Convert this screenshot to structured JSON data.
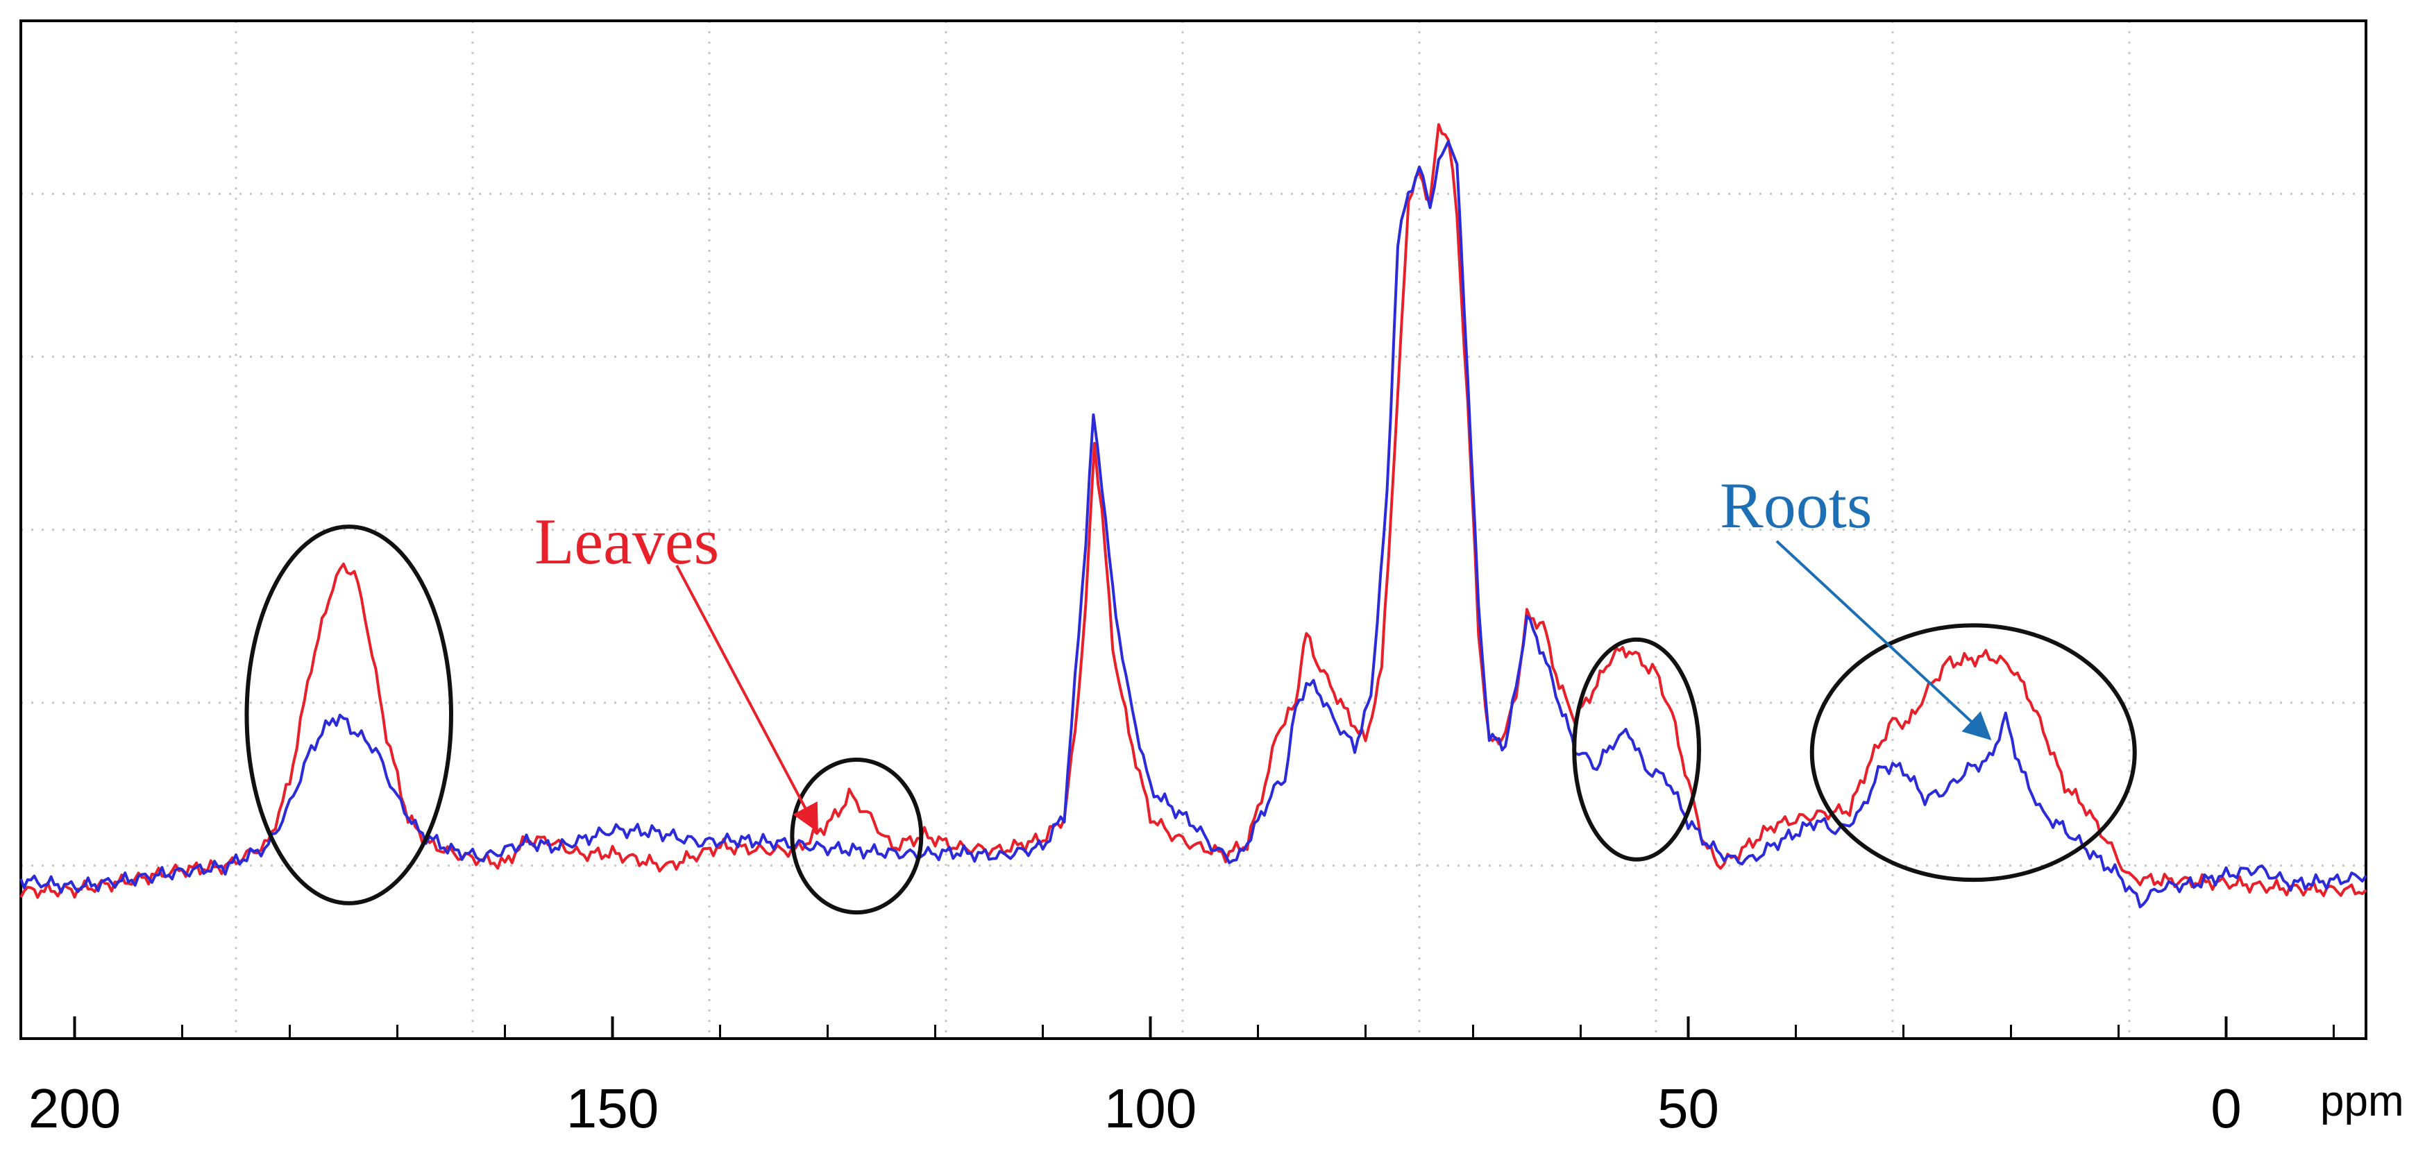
{
  "chart_data": {
    "type": "line",
    "title": "",
    "xlabel": "ppm",
    "ylabel": "",
    "x_reversed": true,
    "xlim": [
      205,
      -13
    ],
    "ylim": [
      0,
      100
    ],
    "grid": true,
    "x_major_ticks": [
      200,
      150,
      100,
      50,
      0
    ],
    "x_tick_labels": [
      "200",
      "150",
      "100",
      "50",
      "0"
    ],
    "x_minor_ticks": [
      190,
      180,
      170,
      160,
      140,
      130,
      120,
      110,
      90,
      80,
      70,
      60,
      40,
      30,
      20,
      10,
      -10
    ],
    "x_grid_lines": [
      185,
      163,
      141,
      119,
      97,
      75,
      53,
      31,
      9
    ],
    "y_grid_lines": [
      17,
      33,
      50,
      67,
      83
    ],
    "series": [
      {
        "name": "Leaves",
        "color": "#e8202a",
        "points": [
          [
            205,
            14.5
          ],
          [
            200,
            14.6
          ],
          [
            195,
            15.5
          ],
          [
            190,
            16.6
          ],
          [
            186,
            16.9
          ],
          [
            182,
            19.2
          ],
          [
            180,
            25.3
          ],
          [
            178,
            36.7
          ],
          [
            176,
            44.6
          ],
          [
            175,
            46.4
          ],
          [
            174,
            45.8
          ],
          [
            173,
            41.6
          ],
          [
            171,
            29.8
          ],
          [
            169,
            21.6
          ],
          [
            167,
            19.1
          ],
          [
            164,
            17.9
          ],
          [
            160,
            17.2
          ],
          [
            158,
            19.5
          ],
          [
            156,
            19.5
          ],
          [
            153,
            18.1
          ],
          [
            150,
            18.2
          ],
          [
            145,
            16.9
          ],
          [
            140,
            18.9
          ],
          [
            136,
            18.5
          ],
          [
            133,
            18.5
          ],
          [
            131,
            20.1
          ],
          [
            129,
            22.2
          ],
          [
            128,
            24.0
          ],
          [
            126,
            21.7
          ],
          [
            124,
            18.8
          ],
          [
            121,
            20.0
          ],
          [
            118,
            18.8
          ],
          [
            114,
            18.5
          ],
          [
            110,
            19.6
          ],
          [
            108,
            21.7
          ],
          [
            107,
            30.2
          ],
          [
            106,
            42.6
          ],
          [
            105.2,
            58.4
          ],
          [
            104.5,
            51.8
          ],
          [
            103.5,
            38.5
          ],
          [
            102,
            30.1
          ],
          [
            100,
            21.8
          ],
          [
            98,
            20.0
          ],
          [
            96,
            19.0
          ],
          [
            93,
            18.1
          ],
          [
            91,
            19.1
          ],
          [
            89,
            26.2
          ],
          [
            88.3,
            29.9
          ],
          [
            87.5,
            31.3
          ],
          [
            86.5,
            32.8
          ],
          [
            86,
            37.1
          ],
          [
            85.5,
            39.7
          ],
          [
            84.5,
            37.0
          ],
          [
            82,
            32.4
          ],
          [
            80,
            29.2
          ],
          [
            78.5,
            36.3
          ],
          [
            77,
            63.0
          ],
          [
            76,
            82.6
          ],
          [
            75,
            84.9
          ],
          [
            74,
            82.3
          ],
          [
            73.2,
            89.5
          ],
          [
            72.3,
            88.8
          ],
          [
            71.5,
            80.6
          ],
          [
            70.5,
            62.4
          ],
          [
            69.5,
            40.1
          ],
          [
            68.5,
            29.0
          ],
          [
            67,
            29.9
          ],
          [
            66,
            34.0
          ],
          [
            65,
            41.5
          ],
          [
            63.5,
            40.7
          ],
          [
            62,
            34.7
          ],
          [
            60.5,
            31.4
          ],
          [
            58.5,
            34.8
          ],
          [
            57,
            37.8
          ],
          [
            55.5,
            38.2
          ],
          [
            54,
            36.7
          ],
          [
            53,
            36.0
          ],
          [
            51.5,
            31.8
          ],
          [
            50,
            25.1
          ],
          [
            48.5,
            19.1
          ],
          [
            47,
            17.0
          ],
          [
            45,
            18.5
          ],
          [
            42,
            21.0
          ],
          [
            38,
            22.0
          ],
          [
            35,
            22.5
          ],
          [
            33,
            27.5
          ],
          [
            31,
            31.2
          ],
          [
            29.5,
            31.0
          ],
          [
            28,
            33.8
          ],
          [
            26,
            36.9
          ],
          [
            24,
            37.2
          ],
          [
            22,
            37.6
          ],
          [
            20,
            36.6
          ],
          [
            18.5,
            34.0
          ],
          [
            17,
            30.3
          ],
          [
            15,
            24.9
          ],
          [
            13,
            22.6
          ],
          [
            11,
            19.3
          ],
          [
            9,
            15.8
          ],
          [
            7,
            15.6
          ],
          [
            0,
            15.3
          ],
          [
            -5,
            14.8
          ],
          [
            -10,
            14.6
          ],
          [
            -13,
            14.6
          ]
        ]
      },
      {
        "name": "Roots",
        "color": "#2b2bd9",
        "points": [
          [
            205,
            15.6
          ],
          [
            200,
            14.9
          ],
          [
            195,
            15.6
          ],
          [
            190,
            16.4
          ],
          [
            186,
            16.9
          ],
          [
            182,
            18.9
          ],
          [
            180,
            23.0
          ],
          [
            178,
            28.5
          ],
          [
            176,
            31.5
          ],
          [
            175,
            31.3
          ],
          [
            174,
            30.2
          ],
          [
            172,
            28.4
          ],
          [
            170,
            23.6
          ],
          [
            168,
            20.3
          ],
          [
            165,
            18.5
          ],
          [
            162,
            17.8
          ],
          [
            158,
            19.3
          ],
          [
            155,
            18.8
          ],
          [
            150,
            20.5
          ],
          [
            146,
            20.3
          ],
          [
            142,
            19.3
          ],
          [
            138,
            19.5
          ],
          [
            134,
            19.2
          ],
          [
            130,
            18.7
          ],
          [
            126,
            18.4
          ],
          [
            122,
            18.1
          ],
          [
            118,
            18.3
          ],
          [
            114,
            17.9
          ],
          [
            110,
            18.9
          ],
          [
            108,
            22.0
          ],
          [
            107,
            35.1
          ],
          [
            106,
            49.1
          ],
          [
            105.3,
            61.1
          ],
          [
            104.5,
            54.6
          ],
          [
            103.5,
            43.8
          ],
          [
            102,
            33.7
          ],
          [
            100,
            24.6
          ],
          [
            98,
            22.7
          ],
          [
            96,
            21.1
          ],
          [
            94,
            18.6
          ],
          [
            92,
            17.4
          ],
          [
            90,
            21.3
          ],
          [
            88.5,
            24.5
          ],
          [
            87.5,
            25.6
          ],
          [
            86.5,
            32.4
          ],
          [
            85.5,
            34.8
          ],
          [
            84.5,
            34.4
          ],
          [
            83,
            31.4
          ],
          [
            81,
            28.6
          ],
          [
            79.5,
            33.6
          ],
          [
            78,
            53.2
          ],
          [
            77,
            78.2
          ],
          [
            76,
            83.1
          ],
          [
            75,
            85.4
          ],
          [
            74,
            82.1
          ],
          [
            73.2,
            85.7
          ],
          [
            72.3,
            88.5
          ],
          [
            71.5,
            85.7
          ],
          [
            70.5,
            65.2
          ],
          [
            69.5,
            42.3
          ],
          [
            68.5,
            29.5
          ],
          [
            67,
            28.9
          ],
          [
            66,
            34.5
          ],
          [
            65,
            41.4
          ],
          [
            63.5,
            37.9
          ],
          [
            62,
            33.0
          ],
          [
            60.5,
            28.5
          ],
          [
            58.5,
            26.7
          ],
          [
            57,
            29.1
          ],
          [
            55.5,
            30.2
          ],
          [
            54,
            26.5
          ],
          [
            52,
            25.6
          ],
          [
            50,
            21.3
          ],
          [
            48,
            18.9
          ],
          [
            46,
            17.6
          ],
          [
            44,
            17.6
          ],
          [
            42,
            19.1
          ],
          [
            40,
            20.2
          ],
          [
            38,
            21.4
          ],
          [
            36,
            20.3
          ],
          [
            34,
            22.2
          ],
          [
            32,
            26.8
          ],
          [
            30,
            26.5
          ],
          [
            28,
            23.6
          ],
          [
            26,
            24.4
          ],
          [
            24,
            26.5
          ],
          [
            22,
            27.4
          ],
          [
            20.5,
            31.5
          ],
          [
            19,
            26.2
          ],
          [
            17,
            22.0
          ],
          [
            15.5,
            21.0
          ],
          [
            14,
            19.6
          ],
          [
            12,
            17.7
          ],
          [
            10,
            16.1
          ],
          [
            8,
            13.3
          ],
          [
            6,
            14.9
          ],
          [
            3,
            15.2
          ],
          [
            0,
            16.1
          ],
          [
            -3,
            16.7
          ],
          [
            -6,
            15.2
          ],
          [
            -10,
            15.5
          ],
          [
            -13,
            16.0
          ]
        ]
      }
    ],
    "annotations": [
      {
        "text": "Leaves",
        "color": "#e8202a",
        "arrow_to": [
          131,
          20.5
        ]
      },
      {
        "text": "Roots",
        "color": "#1d6fb5",
        "arrow_to": [
          22,
          29.5
        ]
      }
    ],
    "highlight_regions": [
      {
        "center": [
          174.5,
          31.8
        ],
        "rx": 9.5,
        "ry": 18.5
      },
      {
        "center": [
          127.3,
          19.9
        ],
        "rx": 6.0,
        "ry": 7.5
      },
      {
        "center": [
          54.8,
          28.4
        ],
        "rx": 5.8,
        "ry": 10.8
      },
      {
        "center": [
          23.5,
          28.1
        ],
        "rx": 15.0,
        "ry": 12.5
      }
    ]
  }
}
